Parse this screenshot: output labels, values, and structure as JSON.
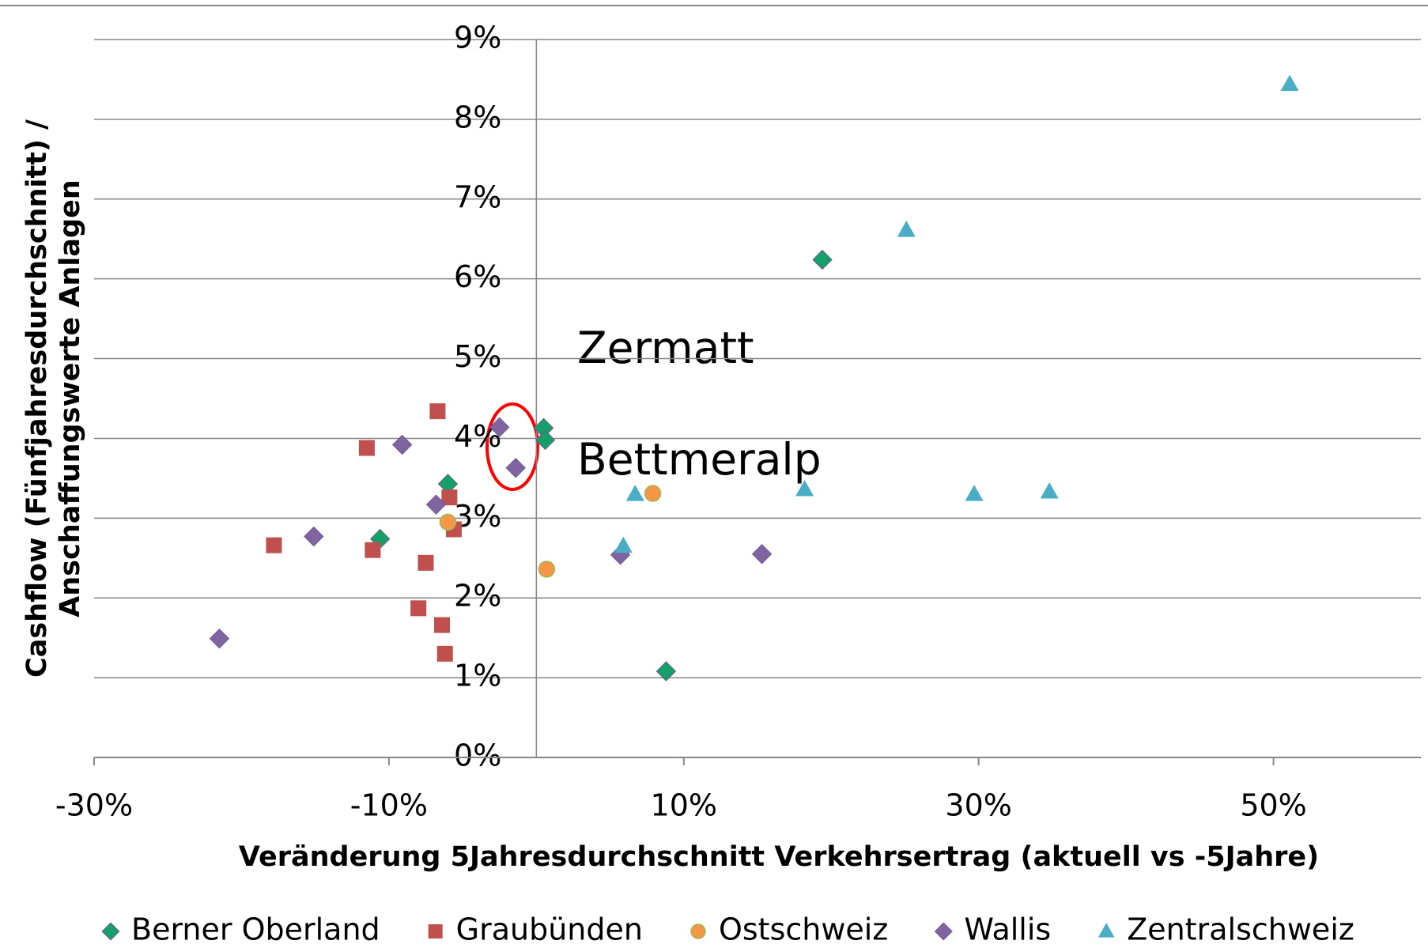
{
  "chart_data": {
    "type": "scatter",
    "xlabel": "Veränderung 5Jahresdurchschnitt Verkehrsertrag (aktuell vs -5Jahre)",
    "ylabel": [
      "Cashflow (Fünfjahresdurchschnitt) /",
      "Anschaffungswerte Anlagen"
    ],
    "annotations": [
      "Zermatt",
      "Bettmeralp"
    ],
    "annotation_color": "#ff0000",
    "xlim": [
      -30,
      60
    ],
    "xticks": [
      {
        "value": -30,
        "label": "-30%"
      },
      {
        "value": -10,
        "label": "-10%"
      },
      {
        "value": 10,
        "label": "10%"
      },
      {
        "value": 30,
        "label": "30%"
      },
      {
        "value": 50,
        "label": "50%"
      }
    ],
    "ylim": [
      0,
      9
    ],
    "yticks": [
      {
        "value": 0,
        "label": "0%"
      },
      {
        "value": 1,
        "label": "1%"
      },
      {
        "value": 2,
        "label": "2%"
      },
      {
        "value": 3,
        "label": "3%"
      },
      {
        "value": 4,
        "label": "4%"
      },
      {
        "value": 5,
        "label": "5%"
      },
      {
        "value": 6,
        "label": "6%"
      },
      {
        "value": 7,
        "label": "7%"
      },
      {
        "value": 8,
        "label": "8%"
      },
      {
        "value": 9,
        "label": "9%"
      }
    ],
    "grid": true,
    "legend": "bottom",
    "series": [
      {
        "name": "Berner Oberland",
        "color": "#15a06a",
        "marker": "diamond",
        "x": [
          0.5,
          0.6,
          -6.0,
          -10.6,
          19.4,
          8.8
        ],
        "values": [
          4.13,
          3.98,
          3.43,
          2.74,
          6.24,
          1.08
        ]
      },
      {
        "name": "Graubünden",
        "color": "#c0504d",
        "marker": "square",
        "x": [
          -6.7,
          -11.5,
          -5.9,
          -5.6,
          -17.8,
          -11.1,
          -7.5,
          -8.0,
          -6.4,
          -6.2
        ],
        "values": [
          4.34,
          3.88,
          3.26,
          2.86,
          2.66,
          2.6,
          2.44,
          1.87,
          1.66,
          1.3
        ]
      },
      {
        "name": "Ostschweiz",
        "color": "#f79646",
        "marker": "circle",
        "x": [
          7.9,
          -6.0,
          0.7
        ],
        "values": [
          3.31,
          2.95,
          2.36
        ]
      },
      {
        "name": "Wallis",
        "color": "#8064a2",
        "marker": "diamond",
        "x": [
          -2.5,
          -1.4,
          -9.1,
          -6.8,
          -15.1,
          5.7,
          15.3,
          -21.5
        ],
        "values": [
          4.14,
          3.63,
          3.92,
          3.17,
          2.77,
          2.54,
          2.55,
          1.49
        ]
      },
      {
        "name": "Zentralschweiz",
        "color": "#4bacc6",
        "marker": "triangle",
        "x": [
          51.1,
          25.1,
          6.7,
          18.2,
          29.7,
          34.8,
          5.9
        ],
        "values": [
          8.44,
          6.61,
          3.3,
          3.36,
          3.3,
          3.33,
          2.65
        ]
      }
    ]
  }
}
